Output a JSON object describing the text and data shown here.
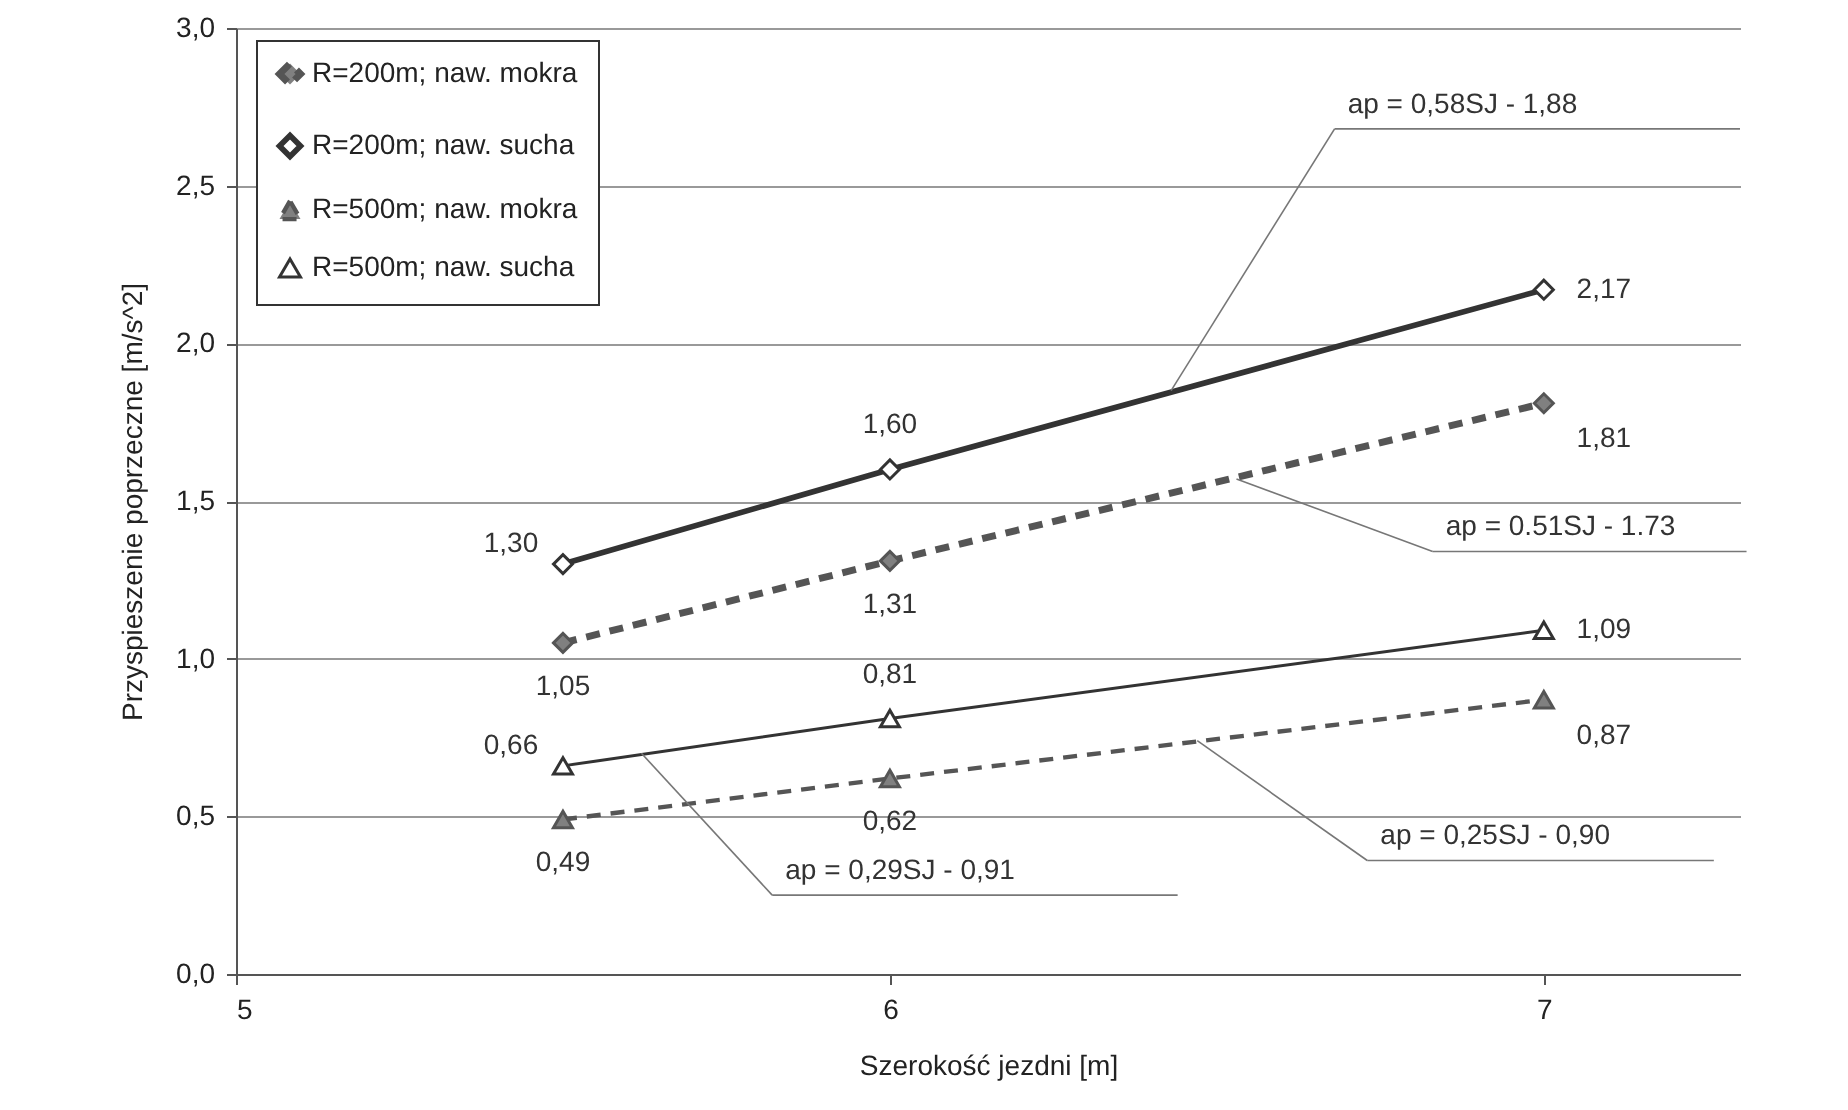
{
  "chart_data": {
    "type": "line",
    "xlabel": "Szerokość jezdni [m]",
    "ylabel": "Przyspieszenie poprzeczne [m/s^2]",
    "x": [
      5.5,
      6,
      7
    ],
    "series": [
      {
        "name": "R=200m; naw. mokra",
        "color": "#555555",
        "values": [
          1.05,
          1.31,
          1.81
        ],
        "value_labels": [
          "1,05",
          "1,31",
          "1,81"
        ],
        "marker": "diamond",
        "line_style": "dashed"
      },
      {
        "name": "R=200m; naw. sucha",
        "color": "#333333",
        "values": [
          1.3,
          1.6,
          2.17
        ],
        "value_labels": [
          "1,30",
          "1,60",
          "2,17"
        ],
        "marker": "diamond",
        "line_style": "solid"
      },
      {
        "name": "R=500m; naw. mokra",
        "color": "#555555",
        "values": [
          0.49,
          0.62,
          0.87
        ],
        "value_labels": [
          "0,49",
          "0,62",
          "0,87"
        ],
        "marker": "triangle",
        "line_style": "dashed"
      },
      {
        "name": "R=500m; naw. sucha",
        "color": "#333333",
        "values": [
          0.66,
          0.81,
          1.09
        ],
        "value_labels": [
          "0,66",
          "0,81",
          "1,09"
        ],
        "marker": "triangle",
        "line_style": "solid"
      }
    ],
    "xlim": [
      5,
      7.3
    ],
    "xticks": [
      5,
      6,
      7
    ],
    "ylim": [
      0,
      3
    ],
    "yticks": [
      {
        "value": 0,
        "label": "0,0"
      },
      {
        "value": 0.5,
        "label": "0,5"
      },
      {
        "value": 1,
        "label": "1,0"
      },
      {
        "value": 1.5,
        "label": "1,5"
      },
      {
        "value": 2,
        "label": "2,0"
      },
      {
        "value": 2.5,
        "label": "2,5"
      },
      {
        "value": 3,
        "label": "3,0"
      }
    ],
    "grid": "y",
    "legend": "top left",
    "annotations": [
      {
        "text": "ap = 0,58SJ - 1,88",
        "x": 6.43,
        "y": 1.85
      },
      {
        "text": "ap = 0.51SJ - 1.73",
        "x": 6.53,
        "y": 1.57
      },
      {
        "text": "ap = 0,29SJ - 0,91",
        "x": 5.62,
        "y": 0.7
      },
      {
        "text": "ap = 0,25SJ - 0,90",
        "x": 6.47,
        "y": 0.74
      }
    ]
  }
}
